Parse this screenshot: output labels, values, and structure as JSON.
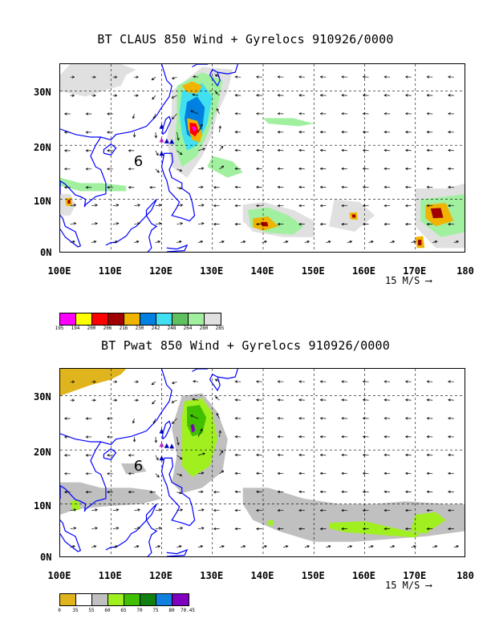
{
  "panels": [
    {
      "title": "BT CLAUS 850 Wind + Gyrelocs 910926/0000",
      "lat_labels": [
        "30N",
        "20N",
        "10N",
        "0N"
      ],
      "lon_labels": [
        "100E",
        "110E",
        "120E",
        "130E",
        "140E",
        "150E",
        "160E",
        "170E",
        "180"
      ],
      "ref_vector": "15 M/S",
      "legend_values": [
        "195",
        "194",
        "200",
        "206",
        "216",
        "230",
        "242",
        "248",
        "264",
        "280",
        "285"
      ],
      "legend_colors": [
        "#ff00ff",
        "#ffff00",
        "#ff0000",
        "#a00000",
        "#f0b400",
        "#0080e0",
        "#40e0f0",
        "#60c060",
        "#a0f0a0",
        "#e0e0e0"
      ],
      "gyre_label": "6"
    },
    {
      "title": "BT Pwat 850 Wind + Gyrelocs 910926/0000",
      "lat_labels": [
        "30N",
        "20N",
        "10N",
        "0N"
      ],
      "lon_labels": [
        "100E",
        "110E",
        "120E",
        "130E",
        "140E",
        "150E",
        "160E",
        "170E",
        "180"
      ],
      "ref_vector": "15 M/S",
      "legend_values": [
        "0",
        "35",
        "55",
        "60",
        "65",
        "70",
        "75",
        "80",
        "70.45"
      ],
      "legend_colors": [
        "#e0b41c",
        "#ffffff",
        "#c0c0c0",
        "#a0f020",
        "#40c000",
        "#108010",
        "#1080e0",
        "#8000c0"
      ],
      "gyre_label": "6"
    }
  ]
}
